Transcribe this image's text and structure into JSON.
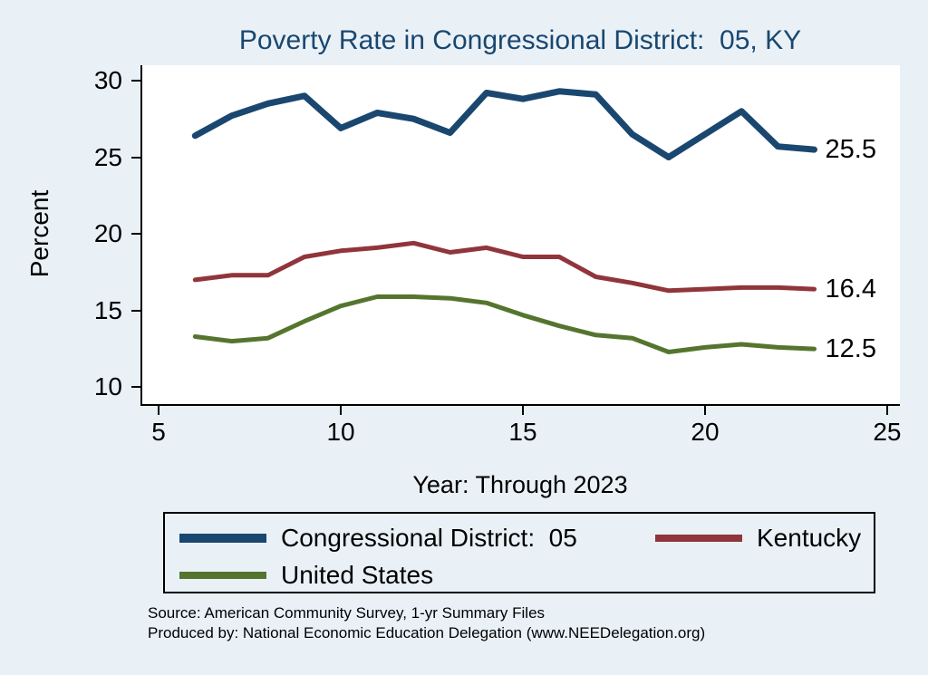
{
  "title": "Poverty Rate in Congressional District:  05, KY",
  "chart_data": {
    "type": "line",
    "x": [
      6,
      7,
      8,
      9,
      10,
      11,
      12,
      13,
      14,
      15,
      16,
      17,
      18,
      19,
      20,
      21,
      22,
      23
    ],
    "series": [
      {
        "name": "Congressional District:  05",
        "color": "#1a476f",
        "width": 7,
        "end_label": "25.5",
        "values": [
          26.4,
          27.7,
          28.5,
          29.0,
          26.9,
          27.9,
          27.5,
          26.6,
          29.2,
          28.8,
          29.3,
          29.1,
          26.5,
          25.0,
          26.5,
          28.0,
          25.7,
          25.5
        ]
      },
      {
        "name": "Kentucky",
        "color": "#90353b",
        "width": 5,
        "end_label": "16.4",
        "values": [
          17.0,
          17.3,
          17.3,
          18.5,
          18.9,
          19.1,
          19.4,
          18.8,
          19.1,
          18.5,
          18.5,
          17.2,
          16.8,
          16.3,
          16.4,
          16.5,
          16.5,
          16.4
        ]
      },
      {
        "name": "United States",
        "color": "#55752f",
        "width": 5,
        "end_label": "12.5",
        "values": [
          13.3,
          13.0,
          13.2,
          14.3,
          15.3,
          15.9,
          15.9,
          15.8,
          15.5,
          14.7,
          14.0,
          13.4,
          13.2,
          12.3,
          12.6,
          12.8,
          12.6,
          12.5
        ]
      }
    ],
    "title": "Poverty Rate in Congressional District:  05, KY",
    "xlabel": "Year: Through 2023",
    "ylabel": "Percent",
    "x_ticks": [
      5,
      10,
      15,
      20,
      25
    ],
    "y_ticks": [
      30,
      25,
      20,
      15,
      10
    ],
    "xlim": [
      4.55,
      25.35
    ],
    "ylim": [
      8.9,
      31.0
    ],
    "grid": false,
    "legend_position": "bottom",
    "background": "#e9f1f7",
    "plot_background": "#ffffff",
    "title_color": "#1a476f"
  },
  "footer": {
    "source": "Source: American Community Survey, 1-yr Summary Files",
    "produced_by": "Produced by: National Economic Education Delegation (www.NEEDelegation.org)"
  }
}
